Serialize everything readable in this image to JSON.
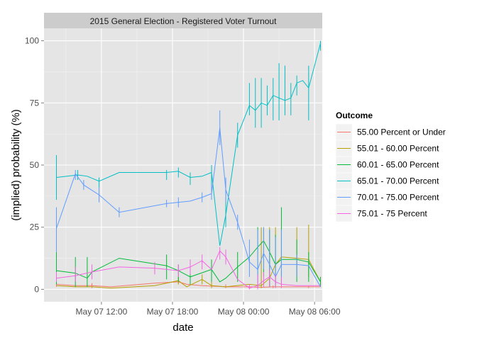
{
  "chart_data": {
    "type": "line",
    "title": "2015 General Election - Registered Voter Turnout",
    "xlabel": "date",
    "ylabel": "(implied) probability (%)",
    "x_unit": "hours since 2015-05-07 00:00",
    "xlim": [
      7.15,
      30.65
    ],
    "ylim": [
      -5,
      105
    ],
    "x_ticks": [
      {
        "value": 12,
        "label": "May 07 12:00"
      },
      {
        "value": 18,
        "label": "May 07 18:00"
      },
      {
        "value": 24,
        "label": "May 08 00:00"
      },
      {
        "value": 30,
        "label": "May 08 06:00"
      }
    ],
    "y_ticks": [
      {
        "value": 0,
        "label": "0"
      },
      {
        "value": 25,
        "label": "25"
      },
      {
        "value": 50,
        "label": "50"
      },
      {
        "value": 75,
        "label": "75"
      },
      {
        "value": 100,
        "label": "100"
      }
    ],
    "grid": true,
    "legend": {
      "title": "Outcome",
      "position": "right"
    },
    "series": [
      {
        "name": "55.00 Percent or Under",
        "color": "#F8766D",
        "points": [
          [
            8.2,
            2
          ],
          [
            9.8,
            1.5
          ],
          [
            11.2,
            1.5
          ],
          [
            12.8,
            1
          ],
          [
            16.5,
            2.5
          ],
          [
            18.5,
            3
          ],
          [
            19.2,
            2
          ],
          [
            20.5,
            1.5
          ],
          [
            22.5,
            1
          ],
          [
            24.5,
            1
          ],
          [
            25.5,
            0.8
          ],
          [
            26.5,
            1
          ],
          [
            28.5,
            1
          ],
          [
            29.5,
            1
          ],
          [
            30.5,
            1
          ]
        ],
        "ranges": [
          [
            8.2,
            1,
            3
          ],
          [
            11.2,
            0.5,
            2.5
          ],
          [
            18.5,
            2,
            4
          ],
          [
            22.5,
            0.5,
            2
          ],
          [
            24.5,
            0.5,
            1.5
          ],
          [
            26.5,
            0.5,
            1.5
          ],
          [
            29.5,
            0.5,
            1.5
          ]
        ]
      },
      {
        "name": "55.01 - 60.00 Percent",
        "color": "#B79F00",
        "points": [
          [
            8.2,
            1.5
          ],
          [
            9.8,
            1
          ],
          [
            11.2,
            1
          ],
          [
            12.8,
            0.5
          ],
          [
            16.5,
            1.5
          ],
          [
            18.5,
            3.5
          ],
          [
            19.2,
            1
          ],
          [
            20.5,
            4
          ],
          [
            21.3,
            1.5
          ],
          [
            22.5,
            1
          ],
          [
            24.5,
            2
          ],
          [
            25.5,
            1.5
          ],
          [
            26.2,
            4.5
          ],
          [
            26.7,
            10
          ],
          [
            27.2,
            13
          ],
          [
            28.5,
            12.5
          ],
          [
            29.5,
            12
          ],
          [
            30.5,
            3
          ]
        ],
        "ranges": [
          [
            18.5,
            2,
            5
          ],
          [
            20.5,
            2,
            6
          ],
          [
            21.3,
            0.5,
            3
          ],
          [
            25.5,
            0.5,
            25
          ],
          [
            26.2,
            1,
            25
          ],
          [
            26.7,
            2,
            25
          ],
          [
            27.2,
            5,
            25
          ],
          [
            28.5,
            5,
            25
          ],
          [
            29.5,
            5,
            26
          ],
          [
            30.5,
            1,
            5
          ]
        ]
      },
      {
        "name": "60.01 - 65.00 Percent",
        "color": "#00BA38",
        "points": [
          [
            8.2,
            7.5
          ],
          [
            9.8,
            6.5
          ],
          [
            10.8,
            4.5
          ],
          [
            11.2,
            7
          ],
          [
            13.5,
            12.5
          ],
          [
            17.5,
            9.5
          ],
          [
            18.5,
            7.5
          ],
          [
            19.5,
            5
          ],
          [
            21.3,
            8
          ],
          [
            22,
            3
          ],
          [
            22.5,
            4.5
          ],
          [
            23.5,
            9
          ],
          [
            24.5,
            13
          ],
          [
            25.2,
            17
          ],
          [
            25.7,
            19.5
          ],
          [
            26.2,
            15
          ],
          [
            26.7,
            10
          ],
          [
            27.2,
            12
          ],
          [
            28.5,
            12
          ],
          [
            29.5,
            11
          ],
          [
            30.5,
            3
          ]
        ],
        "ranges": [
          [
            8.2,
            2,
            15
          ],
          [
            9.8,
            1,
            13
          ],
          [
            10.8,
            1,
            13
          ],
          [
            17.5,
            4,
            14
          ],
          [
            18.5,
            3,
            10
          ],
          [
            19.5,
            2,
            8
          ],
          [
            21.3,
            3,
            12
          ],
          [
            23.5,
            3,
            15
          ],
          [
            25.2,
            0.5,
            25
          ],
          [
            25.7,
            5,
            25
          ],
          [
            26.2,
            1,
            24
          ],
          [
            26.7,
            1,
            22
          ],
          [
            27.2,
            2,
            33
          ],
          [
            28.5,
            3,
            20
          ],
          [
            29.5,
            3,
            15
          ],
          [
            30.5,
            1,
            5
          ]
        ]
      },
      {
        "name": "65.01 - 70.00 Percent",
        "color": "#00BFC4",
        "points": [
          [
            8.2,
            45
          ],
          [
            10,
            46
          ],
          [
            10.8,
            45.5
          ],
          [
            11.8,
            43.5
          ],
          [
            13.5,
            47
          ],
          [
            17.5,
            47
          ],
          [
            18.5,
            47.5
          ],
          [
            19.5,
            45
          ],
          [
            20.5,
            45.5
          ],
          [
            21.3,
            47
          ],
          [
            22,
            17.5
          ],
          [
            22.5,
            30
          ],
          [
            23.5,
            62
          ],
          [
            24.5,
            74
          ],
          [
            25,
            72
          ],
          [
            25.5,
            75
          ],
          [
            26,
            74
          ],
          [
            26.5,
            78
          ],
          [
            27,
            77
          ],
          [
            27.5,
            76
          ],
          [
            28,
            77
          ],
          [
            28.5,
            83
          ],
          [
            29,
            84
          ],
          [
            29.5,
            81
          ],
          [
            30.5,
            99
          ]
        ],
        "ranges": [
          [
            8.2,
            36,
            54
          ],
          [
            10,
            44,
            48
          ],
          [
            11.8,
            41,
            45
          ],
          [
            17.5,
            44,
            48
          ],
          [
            18.5,
            45,
            49
          ],
          [
            19.5,
            42,
            47
          ],
          [
            21.3,
            40,
            50
          ],
          [
            22.5,
            25,
            40
          ],
          [
            23.5,
            57,
            67
          ],
          [
            24.5,
            70,
            83
          ],
          [
            25,
            65,
            85
          ],
          [
            25.5,
            65,
            85
          ],
          [
            26,
            70,
            82
          ],
          [
            26.5,
            68,
            85
          ],
          [
            27,
            68,
            91
          ],
          [
            27.5,
            70,
            90
          ],
          [
            28,
            70,
            83
          ],
          [
            28.5,
            78,
            86
          ],
          [
            29.5,
            68,
            90
          ],
          [
            30.5,
            96,
            100
          ]
        ]
      },
      {
        "name": "70.01 - 75.00 Percent",
        "color": "#619CFF",
        "points": [
          [
            8.2,
            24.5
          ],
          [
            9.8,
            46.5
          ],
          [
            10.5,
            42
          ],
          [
            11.8,
            38
          ],
          [
            13.5,
            31
          ],
          [
            17.5,
            34.5
          ],
          [
            18.5,
            35
          ],
          [
            19.5,
            35.5
          ],
          [
            20.5,
            37
          ],
          [
            21.3,
            38.5
          ],
          [
            22,
            65
          ],
          [
            22.5,
            40
          ],
          [
            23.5,
            27
          ],
          [
            24.5,
            11
          ],
          [
            25.2,
            8
          ],
          [
            25.7,
            14.5
          ],
          [
            26.2,
            10
          ],
          [
            26.7,
            5
          ],
          [
            27.2,
            10
          ],
          [
            28.5,
            10
          ],
          [
            29.5,
            9.5
          ],
          [
            30.5,
            1
          ]
        ],
        "ranges": [
          [
            8.2,
            15,
            33
          ],
          [
            9.8,
            44,
            48
          ],
          [
            10.5,
            40,
            44
          ],
          [
            11.8,
            35,
            41
          ],
          [
            13.5,
            29,
            33
          ],
          [
            17.5,
            33,
            36
          ],
          [
            18.5,
            33,
            37
          ],
          [
            20.5,
            35,
            39
          ],
          [
            21.3,
            36,
            42
          ],
          [
            22,
            58,
            72
          ],
          [
            22.5,
            35,
            45
          ],
          [
            23.5,
            24,
            30
          ],
          [
            24.5,
            5,
            20
          ],
          [
            25.2,
            3,
            24
          ],
          [
            25.7,
            8,
            25
          ],
          [
            26.2,
            5,
            24
          ],
          [
            26.7,
            2,
            21
          ],
          [
            27.2,
            3,
            24
          ],
          [
            28.5,
            5,
            14
          ]
        ]
      },
      {
        "name": "75.01 - 75 Percent",
        "color": "#F564E3",
        "points": [
          [
            8.2,
            4.5
          ],
          [
            9.8,
            5.5
          ],
          [
            11.2,
            7
          ],
          [
            13.5,
            9
          ],
          [
            16.5,
            8.5
          ],
          [
            18.5,
            7.5
          ],
          [
            19.5,
            9
          ],
          [
            20.5,
            11.5
          ],
          [
            21.3,
            8
          ],
          [
            22,
            15.5
          ],
          [
            22.5,
            13
          ],
          [
            23.5,
            4
          ],
          [
            24.5,
            0.5
          ],
          [
            25.2,
            1.5
          ],
          [
            25.7,
            3.5
          ],
          [
            26.2,
            5
          ],
          [
            26.7,
            3
          ],
          [
            27.2,
            2
          ],
          [
            28.5,
            1.5
          ],
          [
            29.5,
            1.5
          ],
          [
            30.5,
            1.5
          ]
        ],
        "ranges": [
          [
            8.2,
            3,
            7
          ],
          [
            9.8,
            3,
            9
          ],
          [
            11.2,
            4,
            10
          ],
          [
            16.5,
            6,
            11
          ],
          [
            18.5,
            5,
            10
          ],
          [
            19.5,
            6,
            12
          ],
          [
            20.5,
            8,
            14
          ],
          [
            22,
            12,
            17
          ],
          [
            22.5,
            10,
            16
          ],
          [
            24.5,
            0,
            2
          ],
          [
            25.2,
            0,
            6
          ],
          [
            25.7,
            1,
            7
          ],
          [
            26.2,
            1,
            8
          ],
          [
            26.7,
            0.5,
            6
          ],
          [
            27.2,
            0.5,
            5
          ]
        ]
      }
    ]
  }
}
